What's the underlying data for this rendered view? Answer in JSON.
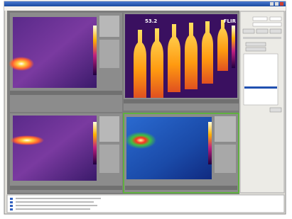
{
  "viewer": {
    "reading": "53.2",
    "brand": "FLIR"
  }
}
